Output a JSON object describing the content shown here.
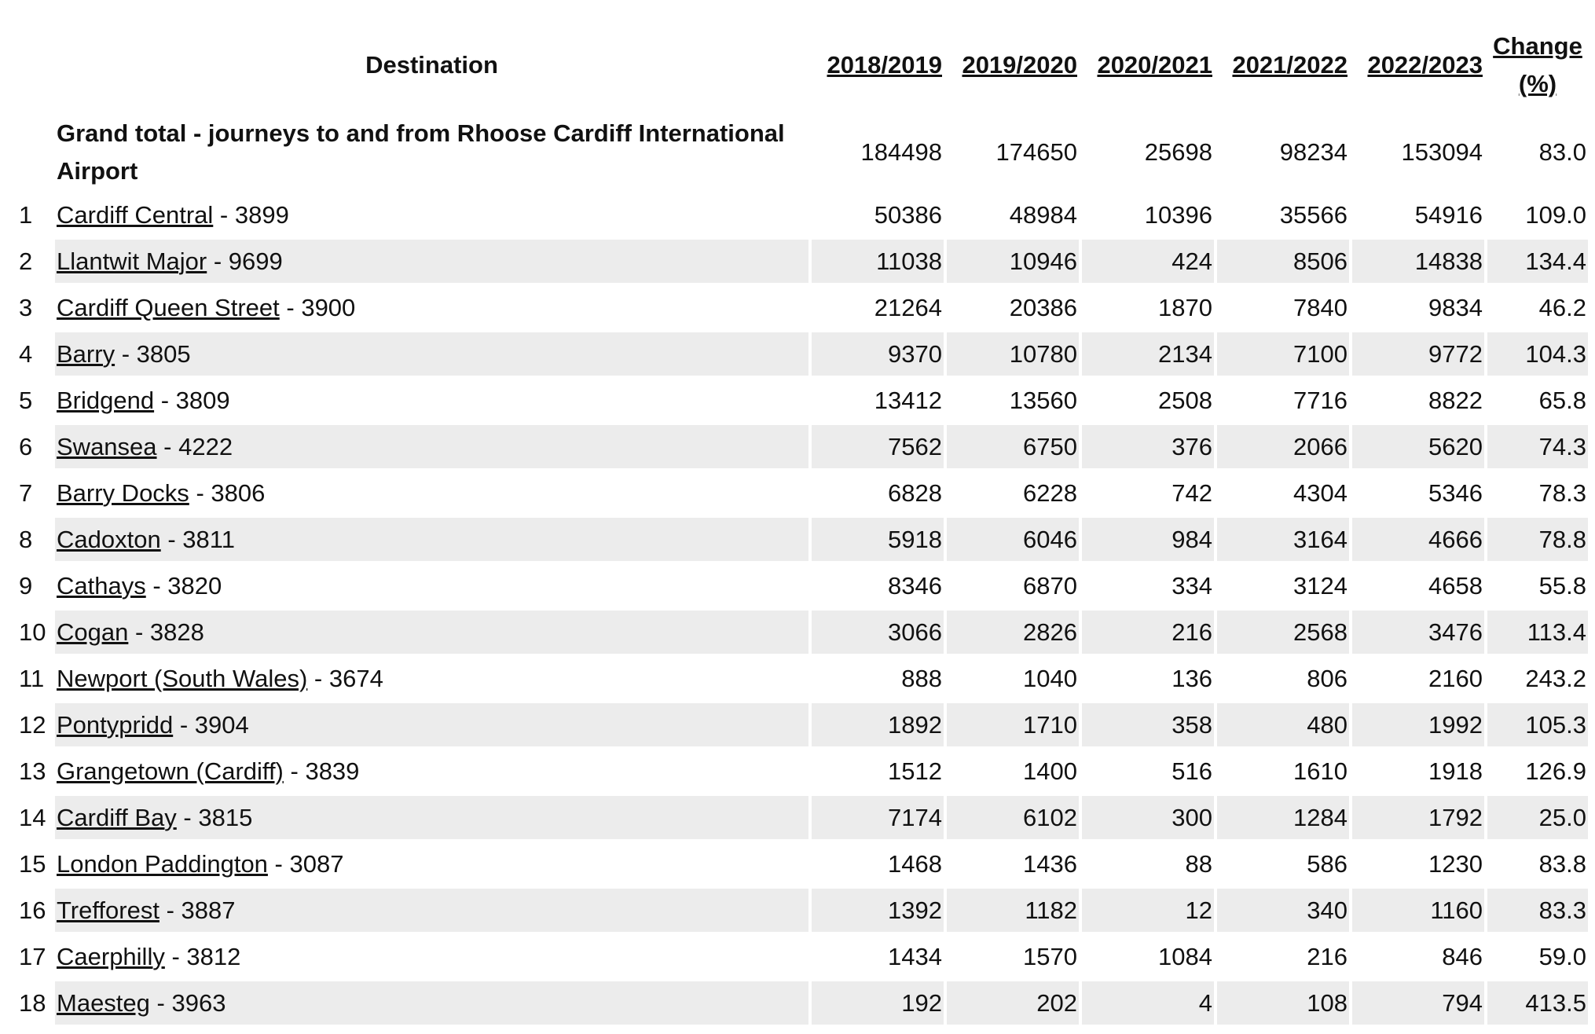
{
  "table": {
    "headers": [
      "Destination",
      "2018/2019",
      "2019/2020",
      "2020/2021",
      "2021/2022",
      "2022/2023",
      "Change (%)"
    ],
    "grand_total": {
      "label": "Grand total - journeys to and from Rhoose Cardiff International Airport",
      "values": [
        184498,
        174650,
        25698,
        98234,
        153094
      ],
      "change": "83.0"
    },
    "rows": [
      {
        "rank": 1,
        "name": "Cardiff Central",
        "code": "- 3899",
        "values": [
          50386,
          48984,
          10396,
          35566,
          54916
        ],
        "change": "109.0"
      },
      {
        "rank": 2,
        "name": "Llantwit Major",
        "code": "- 9699",
        "values": [
          11038,
          10946,
          424,
          8506,
          14838
        ],
        "change": "134.4"
      },
      {
        "rank": 3,
        "name": "Cardiff Queen Street",
        "code": "- 3900",
        "values": [
          21264,
          20386,
          1870,
          7840,
          9834
        ],
        "change": "46.2"
      },
      {
        "rank": 4,
        "name": "Barry",
        "code": "- 3805",
        "values": [
          9370,
          10780,
          2134,
          7100,
          9772
        ],
        "change": "104.3"
      },
      {
        "rank": 5,
        "name": "Bridgend",
        "code": "- 3809",
        "values": [
          13412,
          13560,
          2508,
          7716,
          8822
        ],
        "change": "65.8"
      },
      {
        "rank": 6,
        "name": "Swansea",
        "code": "- 4222",
        "values": [
          7562,
          6750,
          376,
          2066,
          5620
        ],
        "change": "74.3"
      },
      {
        "rank": 7,
        "name": "Barry Docks",
        "code": "- 3806",
        "values": [
          6828,
          6228,
          742,
          4304,
          5346
        ],
        "change": "78.3"
      },
      {
        "rank": 8,
        "name": "Cadoxton",
        "code": "- 3811",
        "values": [
          5918,
          6046,
          984,
          3164,
          4666
        ],
        "change": "78.8"
      },
      {
        "rank": 9,
        "name": "Cathays",
        "code": "- 3820",
        "values": [
          8346,
          6870,
          334,
          3124,
          4658
        ],
        "change": "55.8"
      },
      {
        "rank": 10,
        "name": "Cogan",
        "code": "- 3828",
        "values": [
          3066,
          2826,
          216,
          2568,
          3476
        ],
        "change": "113.4"
      },
      {
        "rank": 11,
        "name": "Newport (South Wales)",
        "code": "- 3674",
        "values": [
          888,
          1040,
          136,
          806,
          2160
        ],
        "change": "243.2"
      },
      {
        "rank": 12,
        "name": "Pontypridd",
        "code": "- 3904",
        "values": [
          1892,
          1710,
          358,
          480,
          1992
        ],
        "change": "105.3"
      },
      {
        "rank": 13,
        "name": "Grangetown (Cardiff)",
        "code": "- 3839",
        "values": [
          1512,
          1400,
          516,
          1610,
          1918
        ],
        "change": "126.9"
      },
      {
        "rank": 14,
        "name": "Cardiff Bay",
        "code": "- 3815",
        "values": [
          7174,
          6102,
          300,
          1284,
          1792
        ],
        "change": "25.0"
      },
      {
        "rank": 15,
        "name": "London Paddington",
        "code": "- 3087",
        "values": [
          1468,
          1436,
          88,
          586,
          1230
        ],
        "change": "83.8"
      },
      {
        "rank": 16,
        "name": "Trefforest",
        "code": "- 3887",
        "values": [
          1392,
          1182,
          12,
          340,
          1160
        ],
        "change": "83.3"
      },
      {
        "rank": 17,
        "name": "Caerphilly",
        "code": "- 3812",
        "values": [
          1434,
          1570,
          1084,
          216,
          846
        ],
        "change": "59.0"
      },
      {
        "rank": 18,
        "name": "Maesteg",
        "code": "- 3963",
        "values": [
          192,
          202,
          4,
          108,
          794
        ],
        "change": "413.5"
      }
    ]
  }
}
